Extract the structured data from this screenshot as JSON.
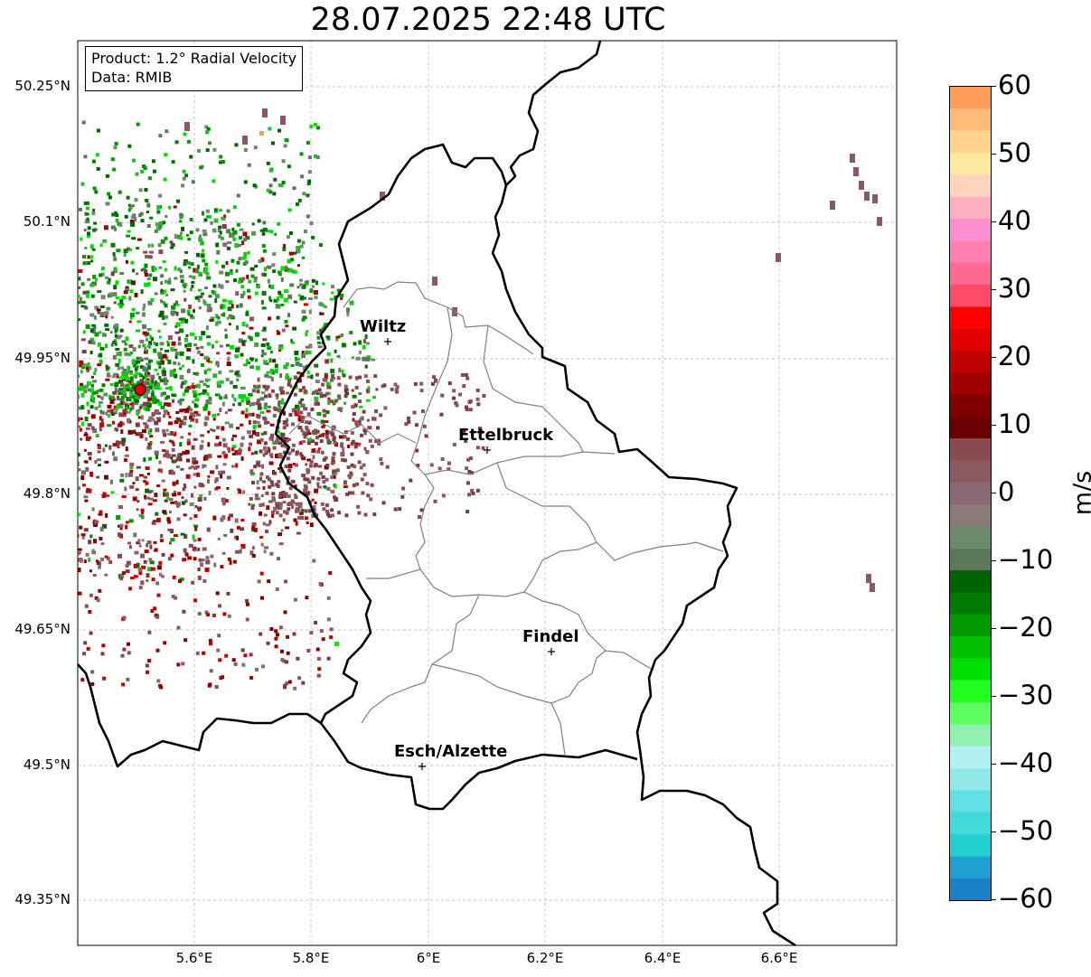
{
  "title": "28.07.2025 22:48 UTC",
  "info": {
    "product": "Product: 1.2° Radial Velocity",
    "data": "Data: RMIB"
  },
  "lat_ticks": [
    "50.25°N",
    "50.1°N",
    "49.95°N",
    "49.8°N",
    "49.65°N",
    "49.5°N",
    "49.35°N"
  ],
  "lon_ticks": [
    "5.6°E",
    "5.8°E",
    "6°E",
    "6.2°E",
    "6.4°E",
    "6.6°E"
  ],
  "cities": [
    {
      "name": "Wiltz"
    },
    {
      "name": "Ettelbruck"
    },
    {
      "name": "Findel"
    },
    {
      "name": "Esch/Alzette"
    }
  ],
  "colorbar": {
    "unit": "m/s",
    "ticks": [
      "60",
      "50",
      "40",
      "30",
      "20",
      "10",
      "0",
      "−10",
      "−20",
      "−30",
      "−40",
      "−50",
      "−60"
    ],
    "range": [
      -60,
      60
    ],
    "colors_top_to_bottom": [
      "#ff9e5a",
      "#ffbb77",
      "#ffd38c",
      "#ffe9a0",
      "#ffd3c0",
      "#ffb0c0",
      "#ff8fd0",
      "#ff7fb0",
      "#ff6890",
      "#ff4a68",
      "#ff0000",
      "#e00000",
      "#c00000",
      "#a00000",
      "#800000",
      "#6a0000",
      "#8a4a52",
      "#8a5a62",
      "#8a6a72",
      "#8a7a7a",
      "#6a8a6a",
      "#5a7a5a",
      "#006400",
      "#007a00",
      "#009a00",
      "#00c000",
      "#00e000",
      "#20ff20",
      "#60ff60",
      "#90f0b0",
      "#b0f0f0",
      "#90e8e8",
      "#60e0e0",
      "#40dada",
      "#20d0d0",
      "#20a0d0",
      "#1a80c8"
    ]
  },
  "radar": {
    "site": "radar-site",
    "site_color": "#ff0000"
  }
}
